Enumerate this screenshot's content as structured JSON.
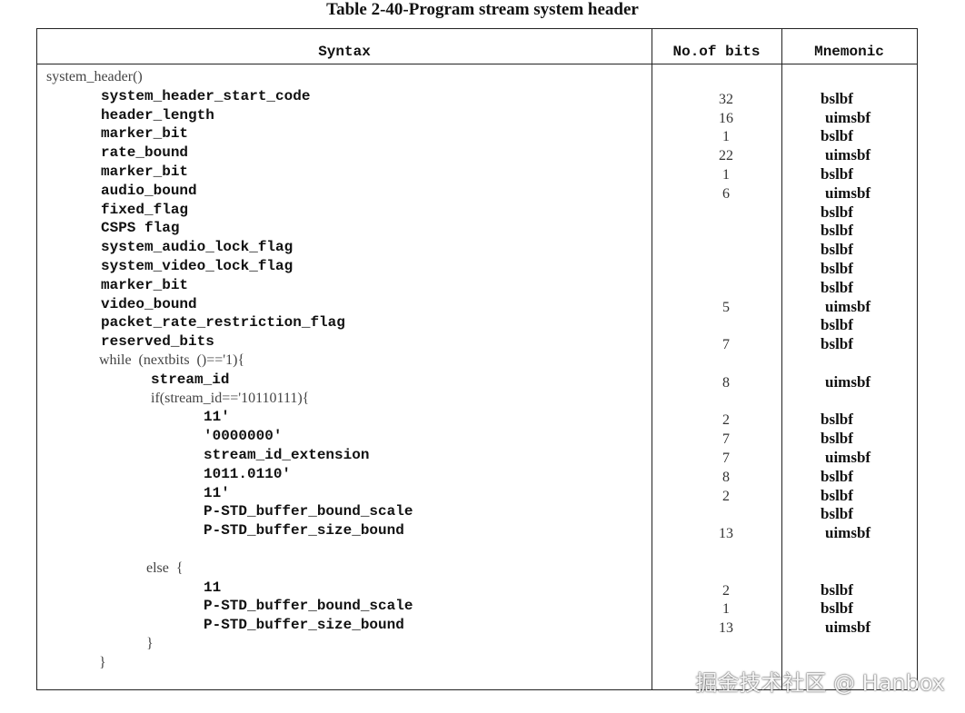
{
  "header": {
    "title": "Table 2-40-Program stream system header"
  },
  "table": {
    "columns": [
      "Syntax",
      "No.of bits",
      "Mnemonic"
    ],
    "rows": [
      {
        "syntax": "system_header()"
      },
      {
        "syntax": "system_header_start_code",
        "bits": 32,
        "mnemonic": "bslbf"
      },
      {
        "syntax": "header_length",
        "bits": 16,
        "mnemonic": "uimsbf"
      },
      {
        "syntax": "marker_bit",
        "bits": 1,
        "mnemonic": "bslbf"
      },
      {
        "syntax": "rate_bound",
        "bits": 22,
        "mnemonic": "uimsbf"
      },
      {
        "syntax": "marker_bit",
        "bits": 1,
        "mnemonic": "bslbf"
      },
      {
        "syntax": "audio_bound",
        "bits": 6,
        "mnemonic": "uimsbf"
      },
      {
        "syntax": "fixed_flag",
        "mnemonic": "bslbf"
      },
      {
        "syntax": "CSPS flag",
        "mnemonic": "bslbf"
      },
      {
        "syntax": "system_audio_lock_flag",
        "mnemonic": "bslbf"
      },
      {
        "syntax": "system_video_lock_flag",
        "mnemonic": "bslbf"
      },
      {
        "syntax": "marker_bit",
        "mnemonic": "bslbf"
      },
      {
        "syntax": "video_bound",
        "bits": 5,
        "mnemonic": "uimsbf"
      },
      {
        "syntax": "packet_rate_restriction_flag",
        "mnemonic": "bslbf"
      },
      {
        "syntax": "reserved_bits",
        "bits": 7,
        "mnemonic": "bslbf"
      },
      {
        "syntax": "while  (nextbits  ()=='1){"
      },
      {
        "syntax": "stream_id",
        "bits": 8,
        "mnemonic": "uimsbf"
      },
      {
        "syntax": "if(stream_id=='10110111){"
      },
      {
        "syntax": "11'",
        "bits": 2,
        "mnemonic": "bslbf"
      },
      {
        "syntax": "'0000000'",
        "bits": 7,
        "mnemonic": "bslbf"
      },
      {
        "syntax": "stream_id_extension",
        "bits": 7,
        "mnemonic": "uimsbf"
      },
      {
        "syntax": "1011.0110'",
        "bits": 8,
        "mnemonic": "bslbf"
      },
      {
        "syntax": "11'",
        "bits": 2,
        "mnemonic": "bslbf"
      },
      {
        "syntax": "P-STD_buffer_bound_scale",
        "mnemonic": "bslbf"
      },
      {
        "syntax": "P-STD_buffer_size_bound",
        "bits": 13,
        "mnemonic": "uimsbf"
      },
      {
        "syntax": "else  {"
      },
      {
        "syntax": "11",
        "bits": 2,
        "mnemonic": "bslbf"
      },
      {
        "syntax": "P-STD_buffer_bound_scale",
        "bits": 1,
        "mnemonic": "bslbf"
      },
      {
        "syntax": "P-STD_buffer_size_bound",
        "bits": 13,
        "mnemonic": "uimsbf"
      },
      {
        "syntax": "}"
      },
      {
        "syntax": "}"
      }
    ]
  },
  "watermark": "掘金技术社区 @ Hanbox"
}
